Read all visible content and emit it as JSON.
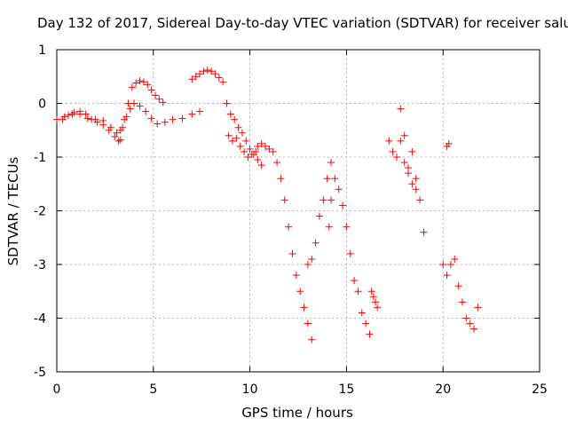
{
  "chart_data": {
    "type": "scatter",
    "title": "Day 132 of 2017, Sidereal Day-to-day VTEC variation (SDTVAR) for receiver salu",
    "xlabel": "GPS time / hours",
    "ylabel": "SDTVAR / TECUs",
    "xlim": [
      0,
      25
    ],
    "ylim": [
      -5,
      1
    ],
    "grid": true,
    "xticks": [
      0,
      5,
      10,
      15,
      20,
      25
    ],
    "yticks": [
      -5,
      -4,
      -3,
      -2,
      -1,
      0,
      1
    ],
    "xtick_labels": [
      "0",
      "5",
      "10",
      "15",
      "20",
      "25"
    ],
    "ytick_labels": [
      "-5",
      "-4",
      "-3",
      "-2",
      "-1",
      "0",
      "1"
    ],
    "marker": "plus",
    "series": [
      {
        "name": "SDTVAR",
        "color": "#ff0000",
        "segments": [
          {
            "x": [
              0,
              0.3,
              0.6,
              0.9,
              1.2,
              1.5,
              1.8,
              2.1,
              2.4,
              2.7,
              3.0,
              3.2
            ],
            "y": [
              -0.3,
              -0.3,
              -0.22,
              -0.17,
              -0.15,
              -0.2,
              -0.3,
              -0.35,
              -0.4,
              -0.5,
              -0.62,
              -0.7
            ]
          },
          {
            "x": [
              0.4,
              0.8,
              1.2,
              1.6,
              2.0,
              2.4,
              2.8,
              3.1,
              3.3
            ],
            "y": [
              -0.25,
              -0.2,
              -0.2,
              -0.28,
              -0.3,
              -0.32,
              -0.45,
              -0.55,
              -0.68
            ]
          },
          {
            "x": [
              3.3,
              3.5,
              3.7,
              3.9,
              4.1,
              4.3,
              4.5,
              4.7,
              4.9,
              5.1,
              5.3,
              5.5
            ],
            "y": [
              -0.5,
              -0.3,
              0.0,
              0.3,
              0.38,
              0.42,
              0.4,
              0.35,
              0.25,
              0.15,
              0.08,
              0.02
            ]
          },
          {
            "x": [
              3.4,
              3.6,
              3.8,
              4.0,
              4.3,
              4.6,
              4.9,
              5.2,
              5.6,
              6.0,
              6.5,
              7.0,
              7.4
            ],
            "y": [
              -0.45,
              -0.25,
              -0.1,
              0.0,
              -0.05,
              -0.15,
              -0.28,
              -0.38,
              -0.35,
              -0.3,
              -0.28,
              -0.2,
              -0.15
            ]
          },
          {
            "x": [
              7.0,
              7.2,
              7.4,
              7.6,
              7.8,
              8.0,
              8.2,
              8.4,
              8.6
            ],
            "y": [
              0.45,
              0.5,
              0.55,
              0.6,
              0.62,
              0.6,
              0.55,
              0.48,
              0.4
            ]
          },
          {
            "x": [
              8.8,
              9.0,
              9.2,
              9.4,
              9.6,
              9.8,
              10.0,
              10.2,
              10.4,
              10.6
            ],
            "y": [
              0.0,
              -0.2,
              -0.3,
              -0.45,
              -0.55,
              -0.7,
              -0.85,
              -0.95,
              -1.05,
              -1.15
            ]
          },
          {
            "x": [
              8.9,
              9.1,
              9.3,
              9.5,
              9.7,
              9.9,
              10.1,
              10.3
            ],
            "y": [
              -0.6,
              -0.7,
              -0.65,
              -0.8,
              -0.9,
              -1.0,
              -0.95,
              -0.9
            ]
          },
          {
            "x": [
              10.4,
              10.6,
              10.8,
              11.0,
              11.2,
              11.4,
              11.6,
              11.8,
              12.0,
              12.2,
              12.4,
              12.6,
              12.8,
              13.0,
              13.2
            ],
            "y": [
              -0.8,
              -0.75,
              -0.8,
              -0.85,
              -0.9,
              -1.1,
              -1.4,
              -1.8,
              -2.3,
              -2.8,
              -3.2,
              -3.5,
              -3.8,
              -4.1,
              -4.4
            ]
          },
          {
            "x": [
              13.0,
              13.2,
              13.4,
              13.6,
              13.8,
              14.0,
              14.2,
              14.4,
              14.6,
              14.8,
              15.0,
              15.2,
              15.4,
              15.6,
              15.8,
              16.0,
              16.2
            ],
            "y": [
              -3.0,
              -2.9,
              -2.6,
              -2.1,
              -1.8,
              -1.4,
              -1.1,
              -1.4,
              -1.6,
              -1.9,
              -2.3,
              -2.8,
              -3.3,
              -3.5,
              -3.9,
              -4.1,
              -4.3
            ]
          },
          {
            "x": [
              14.1,
              14.2
            ],
            "y": [
              -2.3,
              -1.8
            ]
          },
          {
            "x": [
              16.3,
              16.4,
              16.5,
              16.6
            ],
            "y": [
              -3.5,
              -3.6,
              -3.7,
              -3.8
            ]
          },
          {
            "x": [
              17.2,
              17.4,
              17.6,
              17.8,
              18.0,
              18.2,
              18.4,
              18.6,
              18.8,
              19.0
            ],
            "y": [
              -0.7,
              -0.9,
              -1.0,
              -0.7,
              -1.1,
              -1.3,
              -1.5,
              -1.6,
              -1.8,
              -2.4
            ]
          },
          {
            "x": [
              17.8,
              18.0,
              18.2,
              18.4,
              18.6
            ],
            "y": [
              -0.1,
              -0.6,
              -1.2,
              -0.9,
              -1.4
            ]
          },
          {
            "x": [
              20.2,
              20.3
            ],
            "y": [
              -0.8,
              -0.75
            ]
          },
          {
            "x": [
              20.0,
              20.2,
              20.4,
              20.6,
              20.8,
              21.0,
              21.2,
              21.4,
              21.6,
              21.8
            ],
            "y": [
              -3.0,
              -3.2,
              -3.0,
              -2.9,
              -3.4,
              -3.7,
              -4.0,
              -4.1,
              -4.2,
              -3.8
            ]
          }
        ]
      }
    ]
  }
}
